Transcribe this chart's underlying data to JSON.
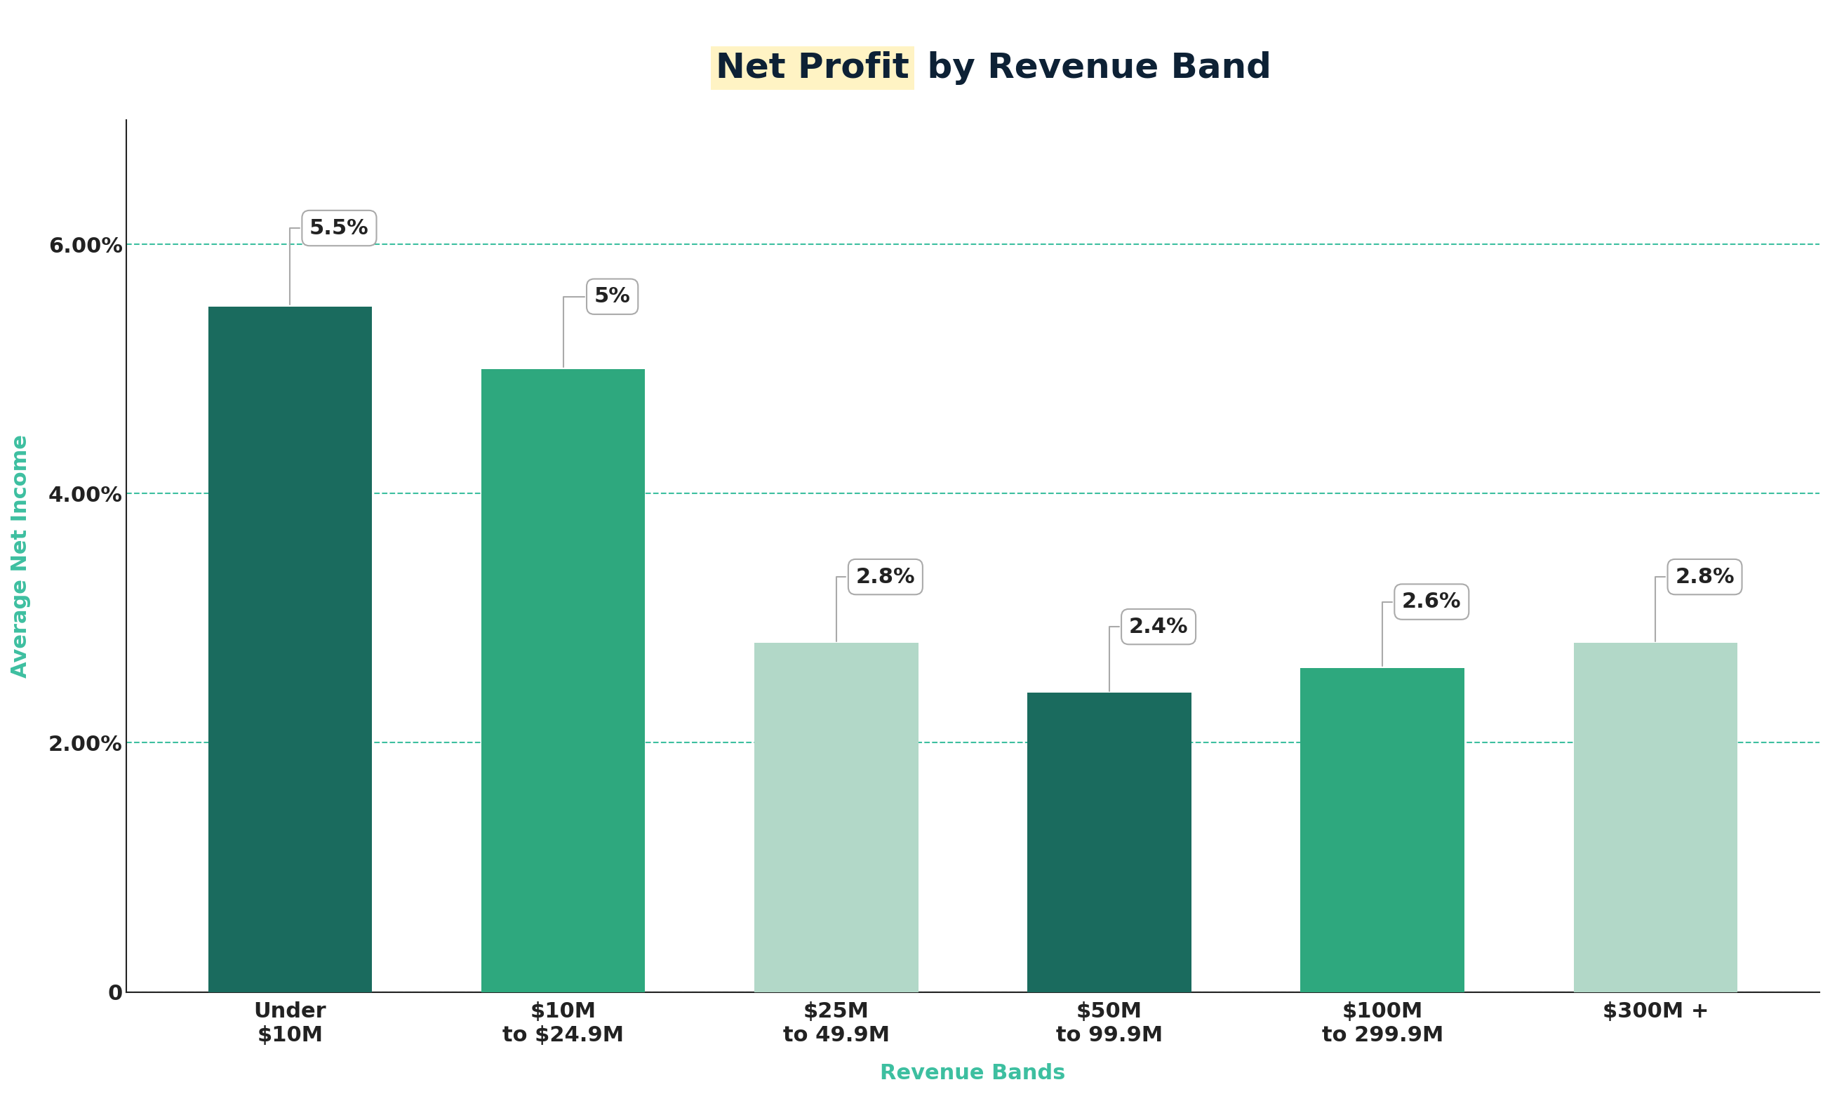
{
  "title_highlight": "Net Profit",
  "title_plain": " by Revenue Band",
  "title_highlight_color": "#FFF3C4",
  "title_color": "#0d2135",
  "xlabel": "Revenue Bands",
  "ylabel": "Average Net Income",
  "xlabel_color": "#3dbfa0",
  "ylabel_color": "#3dbfa0",
  "categories": [
    "Under\n$10M",
    "$10M\nto $24.9M",
    "$25M\nto 49.9M",
    "$50M\nto 99.9M",
    "$100M\nto 299.9M",
    "$300M +"
  ],
  "values": [
    5.5,
    5.0,
    2.8,
    2.4,
    2.6,
    2.8
  ],
  "labels": [
    "5.5%",
    "5%",
    "2.8%",
    "2.4%",
    "2.6%",
    "2.8%"
  ],
  "bar_colors": [
    "#1a6b5e",
    "#2ea87e",
    "#b2d8c8",
    "#1a6b5e",
    "#2ea87e",
    "#b2d8c8"
  ],
  "ylim": [
    0,
    7.0
  ],
  "yticks": [
    0,
    2.0,
    4.0,
    6.0
  ],
  "ytick_labels": [
    "0",
    "2.00%",
    "4.00%",
    "6.00%"
  ],
  "grid_color": "#3dbfa0",
  "background_color": "#ffffff",
  "title_fontsize": 36,
  "axis_label_fontsize": 22,
  "tick_fontsize": 22,
  "annotation_fontsize": 22,
  "bar_width": 0.6
}
